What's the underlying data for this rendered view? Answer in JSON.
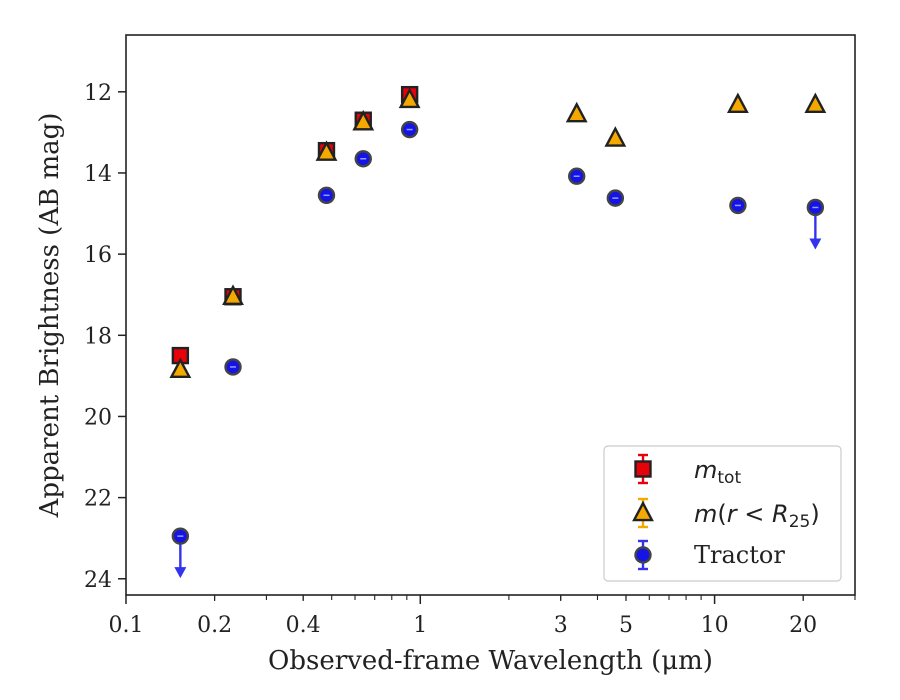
{
  "chart_data": {
    "type": "scatter",
    "title": "",
    "xlabel": "Observed-frame Wavelength (μm)",
    "ylabel": "Apparent Brightness (AB mag)",
    "xscale": "log",
    "xlim": [
      0.1,
      30
    ],
    "ylim": [
      24.4,
      10.6
    ],
    "y_inverted": true,
    "xticks": [
      {
        "value": 0.1,
        "label": "0.1"
      },
      {
        "value": 0.2,
        "label": "0.2"
      },
      {
        "value": 0.4,
        "label": "0.4"
      },
      {
        "value": 1,
        "label": "1"
      },
      {
        "value": 3,
        "label": "3"
      },
      {
        "value": 5,
        "label": "5"
      },
      {
        "value": 10,
        "label": "10"
      },
      {
        "value": 20,
        "label": "20"
      }
    ],
    "yticks": [
      12,
      14,
      16,
      18,
      20,
      22,
      24
    ],
    "grid": false,
    "legend_position": "bottom-right",
    "series": [
      {
        "name": "m_tot",
        "marker": "square",
        "color": "#e8000b",
        "edge_color": "#222222",
        "points": [
          {
            "x": 0.153,
            "y": 18.5
          },
          {
            "x": 0.231,
            "y": 17.05
          },
          {
            "x": 0.48,
            "y": 13.45
          },
          {
            "x": 0.64,
            "y": 12.7
          },
          {
            "x": 0.92,
            "y": 12.07
          }
        ]
      },
      {
        "name": "m(r < R25)",
        "marker": "triangle",
        "color": "#f5a800",
        "edge_color": "#222222",
        "points": [
          {
            "x": 0.153,
            "y": 18.85
          },
          {
            "x": 0.231,
            "y": 17.05
          },
          {
            "x": 0.48,
            "y": 13.5
          },
          {
            "x": 0.64,
            "y": 12.75
          },
          {
            "x": 0.92,
            "y": 12.2
          },
          {
            "x": 3.4,
            "y": 12.55
          },
          {
            "x": 4.6,
            "y": 13.15
          },
          {
            "x": 12.0,
            "y": 12.32
          },
          {
            "x": 22.0,
            "y": 12.32
          }
        ]
      },
      {
        "name": "Tractor",
        "marker": "circle",
        "color": "#1414e6",
        "edge_color": "#444444",
        "points": [
          {
            "x": 0.153,
            "y": 22.95,
            "upper_limit": true
          },
          {
            "x": 0.231,
            "y": 18.78
          },
          {
            "x": 0.48,
            "y": 14.55
          },
          {
            "x": 0.64,
            "y": 13.65
          },
          {
            "x": 0.92,
            "y": 12.93
          },
          {
            "x": 3.4,
            "y": 14.08
          },
          {
            "x": 4.6,
            "y": 14.62
          },
          {
            "x": 12.0,
            "y": 14.8
          },
          {
            "x": 22.0,
            "y": 14.85,
            "upper_limit": true
          }
        ]
      }
    ]
  }
}
